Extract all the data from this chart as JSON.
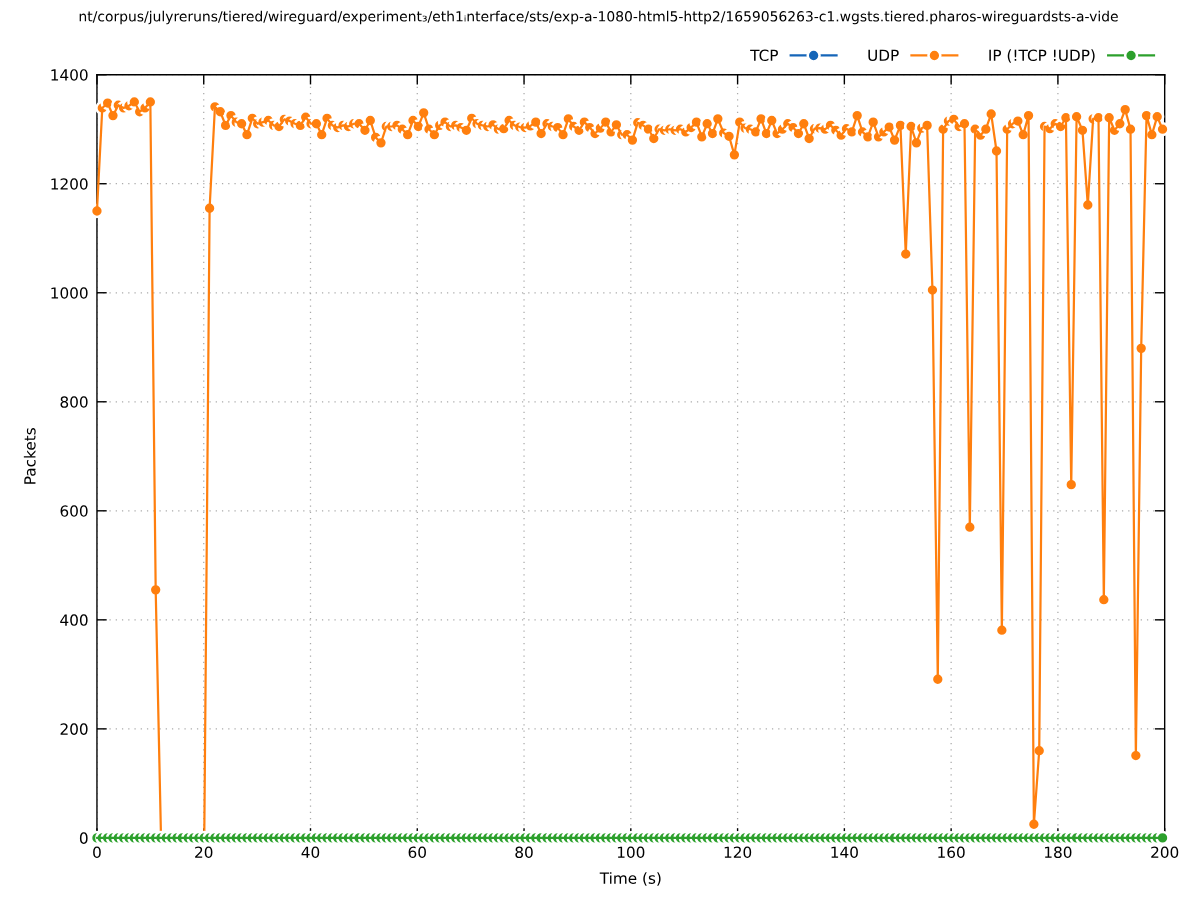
{
  "chart_data": {
    "type": "line",
    "title": "nt/corpus/julyreruns/tiered/wireguard/experiment₃/eth1ᵢnterface/sts/exp-a-1080-html5-http2/1659056263-c1.wgsts.tiered.pharos-wireguardsts-a-vide",
    "xlabel": "Time (s)",
    "ylabel": "Packets",
    "x": [
      0,
      1,
      2,
      3,
      4,
      5,
      6,
      7,
      8,
      9,
      10,
      11,
      12,
      13,
      14,
      15,
      16,
      17.1,
      18.1,
      19.1,
      20.1,
      21.1,
      22.1,
      23.1,
      24.1,
      25.1,
      26.1,
      27.1,
      28.1,
      29.1,
      30.1,
      31.1,
      32.1,
      33.1,
      34.1,
      35.1,
      36.1,
      37.1,
      38.1,
      39.1,
      40.1,
      41.1,
      42.1,
      43.1,
      44.1,
      45.1,
      46.1,
      47.1,
      48.1,
      49.1,
      50.2,
      51.2,
      52.2,
      53.2,
      54.2,
      55.2,
      56.2,
      57.2,
      58.2,
      59.2,
      60.2,
      61.2,
      62.2,
      63.2,
      64.2,
      65.2,
      66.2,
      67.2,
      68.2,
      69.2,
      70.2,
      71.2,
      72.2,
      73.2,
      74.2,
      75.2,
      76.2,
      77.2,
      78.2,
      79.2,
      80.2,
      81.2,
      82.2,
      83.2,
      84.3,
      85.3,
      86.3,
      87.3,
      88.3,
      89.3,
      90.3,
      91.3,
      92.3,
      93.3,
      94.3,
      95.3,
      96.3,
      97.3,
      98.3,
      99.3,
      100.3,
      101.3,
      102.3,
      103.3,
      104.3,
      105.3,
      106.3,
      107.3,
      108.3,
      109.3,
      110.3,
      111.3,
      112.3,
      113.3,
      114.3,
      115.3,
      116.3,
      117.4,
      118.4,
      119.4,
      120.4,
      121.4,
      122.4,
      123.4,
      124.4,
      125.4,
      126.4,
      127.4,
      128.4,
      129.4,
      130.4,
      131.4,
      132.4,
      133.4,
      134.4,
      135.4,
      136.4,
      137.4,
      138.4,
      139.4,
      140.4,
      141.4,
      142.4,
      143.4,
      144.4,
      145.4,
      146.4,
      147.4,
      148.4,
      149.4,
      150.5,
      151.5,
      152.5,
      153.5,
      154.5,
      155.5,
      156.5,
      157.5,
      158.5,
      159.5,
      160.5,
      161.5,
      162.5,
      163.5,
      164.5,
      165.5,
      166.5,
      167.5,
      168.5,
      169.5,
      170.5,
      171.5,
      172.5,
      173.5,
      174.5,
      175.5,
      176.5,
      177.5,
      178.5,
      179.5,
      180.5,
      181.5,
      182.5,
      183.5,
      184.6,
      185.6,
      186.6,
      187.6,
      188.6,
      189.6,
      190.6,
      191.6,
      192.6,
      193.6,
      194.6,
      195.6,
      196.6,
      197.6,
      198.6,
      199.6
    ],
    "series": [
      {
        "name": "TCP",
        "color": "#1565b8",
        "values": [
          null,
          null,
          null,
          null,
          null,
          null,
          null,
          null,
          null,
          null,
          null,
          null,
          null,
          null,
          null,
          null,
          null,
          null,
          null,
          null,
          null,
          null,
          null,
          null,
          null,
          null,
          null,
          null,
          null,
          null,
          null,
          null,
          null,
          null,
          null,
          null,
          null,
          null,
          null,
          null,
          null,
          null,
          null,
          null,
          null,
          null,
          null,
          null,
          null,
          null,
          null,
          null,
          null,
          null,
          null,
          null,
          null,
          null,
          null,
          null,
          null,
          null,
          null,
          null,
          null,
          null,
          null,
          null,
          null,
          null,
          null,
          null,
          null,
          null,
          null,
          null,
          null,
          null,
          null,
          null,
          null,
          null,
          null,
          null,
          null,
          null,
          null,
          null,
          null,
          null,
          null,
          null,
          null,
          null,
          null,
          null,
          null,
          null,
          null,
          null,
          null,
          null,
          null,
          null,
          null,
          null,
          null,
          null,
          null,
          null,
          null,
          null,
          null,
          null,
          null,
          null,
          null,
          null,
          null,
          null,
          null,
          null,
          null,
          null,
          null,
          null,
          null,
          null,
          null,
          null,
          null,
          null,
          null,
          null,
          null,
          null,
          null,
          null,
          null,
          null,
          null,
          null,
          null,
          null,
          null,
          null,
          null,
          null,
          null,
          null,
          null,
          null,
          null,
          null,
          null,
          null,
          null,
          null,
          null,
          null,
          null,
          null,
          null,
          null,
          null,
          null,
          null,
          null,
          null,
          null,
          null,
          null,
          null,
          null,
          null,
          null,
          null,
          null,
          null,
          null,
          null,
          null,
          null,
          null,
          null,
          null,
          null,
          null,
          null,
          null,
          null,
          null,
          null,
          null,
          null,
          null,
          null,
          null,
          null,
          null
        ]
      },
      {
        "name": "UDP",
        "color": "#ff7f0e",
        "values": [
          1150,
          1339,
          1348,
          1325,
          1344,
          1339,
          1343,
          1350,
          1332,
          1339,
          1350,
          455,
          0,
          0,
          0,
          0,
          0,
          0,
          0,
          0,
          0,
          1155,
          1341,
          1332,
          1307,
          1325,
          1313,
          1310,
          1290,
          1320,
          1310,
          1313,
          1316,
          1307,
          1305,
          1318,
          1315,
          1310,
          1307,
          1322,
          1310,
          1310,
          1290,
          1320,
          1307,
          1303,
          1307,
          1305,
          1310,
          1310,
          1298,
          1316,
          1285,
          1275,
          1305,
          1305,
          1307,
          1300,
          1290,
          1316,
          1305,
          1330,
          1300,
          1290,
          1307,
          1313,
          1305,
          1307,
          1303,
          1298,
          1320,
          1310,
          1307,
          1305,
          1308,
          1300,
          1301,
          1316,
          1307,
          1304,
          1303,
          1306,
          1313,
          1292,
          1310,
          1305,
          1303,
          1290,
          1319,
          1305,
          1298,
          1313,
          1303,
          1292,
          1302,
          1313,
          1295,
          1308,
          1290,
          1290,
          1280,
          1312,
          1307,
          1300,
          1283,
          1300,
          1298,
          1300,
          1298,
          1300,
          1295,
          1303,
          1313,
          1286,
          1310,
          1292,
          1319,
          1293,
          1287,
          1253,
          1313,
          1302,
          1300,
          1295,
          1319,
          1292,
          1316,
          1292,
          1300,
          1310,
          1303,
          1292,
          1310,
          1283,
          1301,
          1302,
          1300,
          1307,
          1298,
          1289,
          1301,
          1295,
          1325,
          1295,
          1286,
          1313,
          1286,
          1295,
          1304,
          1280,
          1307,
          1071,
          1305,
          1275,
          1302,
          1307,
          1005,
          291,
          1300,
          1315,
          1318,
          1305,
          1310,
          570,
          1300,
          1289,
          1300,
          1328,
          1260,
          381,
          1300,
          1310,
          1315,
          1290,
          1325,
          25,
          160,
          1305,
          1301,
          1310,
          1305,
          1321,
          648,
          1323,
          1298,
          1161,
          1319,
          1321,
          437,
          1321,
          1298,
          1310,
          1336,
          1300,
          151,
          898,
          1325,
          1290,
          1323,
          1300
        ]
      },
      {
        "name": "IP (!TCP !UDP)",
        "color": "#2ca02c",
        "values": [
          0,
          0,
          0,
          0,
          0,
          0,
          0,
          0,
          0,
          0,
          0,
          0,
          0,
          0,
          0,
          0,
          0,
          0,
          0,
          0,
          0,
          0,
          0,
          0,
          0,
          0,
          0,
          0,
          0,
          0,
          0,
          0,
          0,
          0,
          0,
          0,
          0,
          0,
          0,
          0,
          0,
          0,
          0,
          0,
          0,
          0,
          0,
          0,
          0,
          0,
          0,
          0,
          0,
          0,
          0,
          0,
          0,
          0,
          0,
          0,
          0,
          0,
          0,
          0,
          0,
          0,
          0,
          0,
          0,
          0,
          0,
          0,
          0,
          0,
          0,
          0,
          0,
          0,
          0,
          0,
          0,
          0,
          0,
          0,
          0,
          0,
          0,
          0,
          0,
          0,
          0,
          0,
          0,
          0,
          0,
          0,
          0,
          0,
          0,
          0,
          0,
          0,
          0,
          0,
          0,
          0,
          0,
          0,
          0,
          0,
          0,
          0,
          0,
          0,
          0,
          0,
          0,
          0,
          0,
          0,
          0,
          0,
          0,
          0,
          0,
          0,
          0,
          0,
          0,
          0,
          0,
          0,
          0,
          0,
          0,
          0,
          0,
          0,
          0,
          0,
          0,
          0,
          0,
          0,
          0,
          0,
          0,
          0,
          0,
          0,
          0,
          0,
          0,
          0,
          0,
          0,
          0,
          0,
          0,
          0,
          0,
          0,
          0,
          0,
          0,
          0,
          0,
          0,
          0,
          0,
          0,
          0,
          0,
          0,
          0,
          0,
          0,
          0,
          0,
          0,
          0,
          0,
          0,
          0,
          0,
          0,
          0,
          0,
          0,
          0,
          0,
          0,
          0,
          0,
          0,
          0,
          0,
          0,
          0,
          0
        ]
      }
    ],
    "xlim": [
      0,
      200
    ],
    "xticks": [
      0,
      20,
      40,
      60,
      80,
      100,
      120,
      140,
      160,
      180,
      200
    ],
    "ylim": [
      0,
      1400
    ],
    "yticks": [
      0,
      200,
      400,
      600,
      800,
      1000,
      1200,
      1400
    ],
    "grid": true,
    "legend": "top right",
    "marker": "circle",
    "line_style": "solid"
  }
}
